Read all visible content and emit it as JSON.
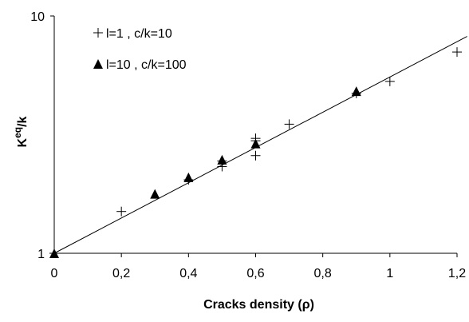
{
  "chart_data": {
    "type": "scatter",
    "xlabel": "Cracks density (ρ)",
    "ylabel_main": "K",
    "ylabel_sup": "eq",
    "ylabel_tail": "/k",
    "xlim": [
      0,
      1.2
    ],
    "ylim": [
      1,
      10
    ],
    "yscale": "log",
    "grid": false,
    "legend_position": "top-left",
    "x_ticks": [
      0,
      0.2,
      0.4,
      0.6,
      0.8,
      1.0,
      1.2
    ],
    "x_tick_labels": [
      "0",
      "0,2",
      "0,4",
      "0,6",
      "0,8",
      "1",
      "1,2"
    ],
    "y_ticks": [
      1,
      10
    ],
    "y_tick_labels": [
      "1",
      "10"
    ],
    "series": [
      {
        "name": "l=1 , c/k=10",
        "marker": "plus",
        "points": [
          [
            0,
            1.0
          ],
          [
            0.2,
            1.5
          ],
          [
            0.4,
            2.04
          ],
          [
            0.5,
            2.32
          ],
          [
            0.5,
            2.45
          ],
          [
            0.6,
            2.58
          ],
          [
            0.6,
            2.98
          ],
          [
            0.6,
            3.05
          ],
          [
            0.7,
            3.5
          ],
          [
            0.9,
            4.72
          ],
          [
            1.0,
            5.3
          ],
          [
            1.2,
            7.05
          ]
        ]
      },
      {
        "name": "l=10 , c/k=100",
        "marker": "triangle",
        "points": [
          [
            0,
            1.0
          ],
          [
            0.3,
            1.78
          ],
          [
            0.4,
            2.09
          ],
          [
            0.5,
            2.48
          ],
          [
            0.6,
            2.9
          ],
          [
            0.9,
            4.82
          ]
        ]
      }
    ],
    "fit_line": {
      "x": [
        0,
        1.23
      ],
      "y": [
        1.0,
        8.2
      ]
    }
  }
}
